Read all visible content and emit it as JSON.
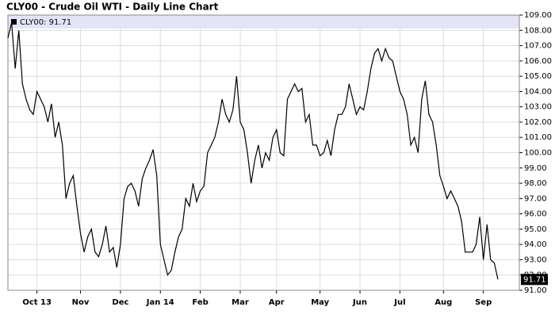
{
  "chart_data": {
    "type": "line",
    "title": "CLY00 - Crude Oil WTI - Daily Line Chart",
    "categories": [
      null,
      null,
      null,
      null,
      null,
      null,
      null,
      null,
      "Oct 13",
      null,
      null,
      null,
      null,
      null,
      null,
      null,
      null,
      null,
      null,
      null,
      "Nov",
      null,
      null,
      null,
      null,
      null,
      null,
      null,
      null,
      null,
      null,
      "Dec",
      null,
      null,
      null,
      null,
      null,
      null,
      null,
      null,
      null,
      null,
      "Jan 14",
      null,
      null,
      null,
      null,
      null,
      null,
      null,
      null,
      null,
      null,
      "Feb",
      null,
      null,
      null,
      null,
      null,
      null,
      null,
      null,
      null,
      null,
      "Mar",
      null,
      null,
      null,
      null,
      null,
      null,
      null,
      null,
      null,
      "Apr",
      null,
      null,
      null,
      null,
      null,
      null,
      null,
      null,
      null,
      null,
      null,
      "May",
      null,
      null,
      null,
      null,
      null,
      null,
      null,
      null,
      null,
      null,
      "Jun",
      null,
      null,
      null,
      null,
      null,
      null,
      null,
      null,
      null,
      null,
      "Jul",
      null,
      null,
      null,
      null,
      null,
      null,
      null,
      null,
      null,
      null,
      null,
      "Aug",
      null,
      null,
      null,
      null,
      null,
      null,
      null,
      null,
      null,
      null,
      "Sep",
      null,
      null,
      null,
      null
    ],
    "series": [
      {
        "name": "CLY00: 91.71",
        "color": "#000000",
        "values": [
          107.5,
          108.5,
          105.5,
          108.0,
          104.5,
          103.5,
          102.8,
          102.5,
          104.0,
          103.5,
          103.0,
          102.0,
          103.2,
          101.0,
          102.0,
          100.5,
          97.0,
          98.0,
          98.5,
          96.5,
          94.7,
          93.5,
          94.5,
          95.0,
          93.5,
          93.2,
          94.0,
          95.2,
          93.5,
          93.8,
          92.5,
          94.0,
          97.0,
          97.8,
          98.0,
          97.5,
          96.5,
          98.3,
          99.0,
          99.5,
          100.2,
          98.5,
          94.0,
          93.0,
          92.0,
          92.3,
          93.5,
          94.5,
          95.0,
          97.0,
          96.5,
          98.0,
          96.8,
          97.5,
          97.8,
          100.0,
          100.5,
          101.0,
          102.0,
          103.5,
          102.5,
          102.0,
          102.8,
          105.0,
          102.0,
          101.5,
          100.0,
          98.0,
          99.5,
          100.5,
          99.0,
          100.0,
          99.5,
          101.0,
          101.5,
          100.0,
          99.8,
          103.5,
          104.0,
          104.5,
          104.0,
          104.2,
          102.0,
          102.5,
          100.5,
          100.5,
          99.8,
          100.0,
          100.8,
          99.8,
          101.5,
          102.5,
          102.5,
          103.0,
          104.5,
          103.5,
          102.5,
          103.0,
          102.8,
          104.0,
          105.5,
          106.5,
          106.8,
          106.0,
          106.8,
          106.2,
          106.0,
          105.0,
          104.0,
          103.5,
          102.5,
          100.5,
          101.0,
          100.0,
          103.5,
          104.7,
          102.5,
          102.0,
          100.5,
          98.5,
          97.8,
          97.0,
          97.5,
          97.0,
          96.5,
          95.5,
          93.5,
          93.5,
          93.5,
          94.0,
          95.8,
          93.0,
          95.3,
          93.0,
          92.8,
          91.71
        ]
      }
    ],
    "ylim": [
      91,
      109
    ],
    "yticks": [
      {
        "value": 91,
        "label": "91.00"
      },
      {
        "value": 92,
        "label": "92.00"
      },
      {
        "value": 93,
        "label": "93.00"
      },
      {
        "value": 94,
        "label": "94.00"
      },
      {
        "value": 95,
        "label": "95.00"
      },
      {
        "value": 96,
        "label": "96.00"
      },
      {
        "value": 97,
        "label": "97.00"
      },
      {
        "value": 98,
        "label": "98.00"
      },
      {
        "value": 99,
        "label": "99.00"
      },
      {
        "value": 100,
        "label": "100.00"
      },
      {
        "value": 101,
        "label": "101.00"
      },
      {
        "value": 102,
        "label": "102.00"
      },
      {
        "value": 103,
        "label": "103.00"
      },
      {
        "value": 104,
        "label": "104.00"
      },
      {
        "value": 105,
        "label": "105.00"
      },
      {
        "value": 106,
        "label": "106.00"
      },
      {
        "value": 107,
        "label": "107.00"
      },
      {
        "value": 108,
        "label": "108.00"
      },
      {
        "value": 109,
        "label": "109.00"
      }
    ],
    "grid": true
  }
}
